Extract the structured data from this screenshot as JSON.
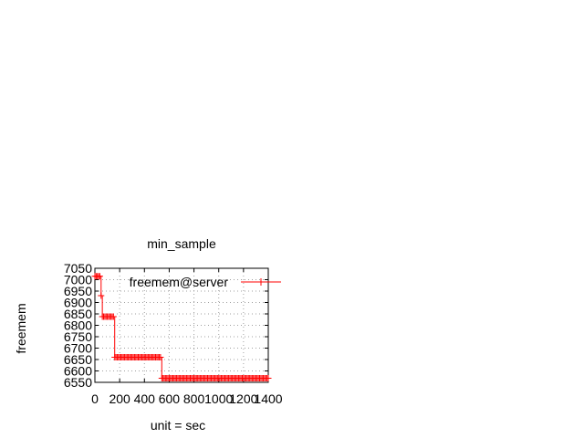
{
  "chart_data": {
    "type": "line",
    "title": "min_sample",
    "xlabel": "unit = sec",
    "ylabel": "freemem",
    "xlim": [
      0,
      1400
    ],
    "ylim": [
      6550,
      7050
    ],
    "xticks": [
      "0",
      "200",
      "400",
      "600",
      "800",
      "1000",
      "1200",
      "1400"
    ],
    "yticks": [
      "6550",
      "6600",
      "6650",
      "6700",
      "6750",
      "6800",
      "6850",
      "6900",
      "6950",
      "7000",
      "7050"
    ],
    "grid": true,
    "legend_position": "top-right",
    "series": [
      {
        "name": "freemem@server",
        "color": "#ff0000",
        "marker": "plus",
        "segments": [
          {
            "x_start": 0,
            "x_end": 40,
            "step": 10,
            "y": 7015
          },
          {
            "x_start": 50,
            "x_end": 50,
            "step": 10,
            "y": 6930
          },
          {
            "x_start": 60,
            "x_end": 150,
            "step": 10,
            "y": 6838
          },
          {
            "x_start": 160,
            "x_end": 530,
            "step": 10,
            "y": 6660
          },
          {
            "x_start": 540,
            "x_end": 1400,
            "step": 10,
            "y": 6568
          }
        ]
      }
    ]
  }
}
